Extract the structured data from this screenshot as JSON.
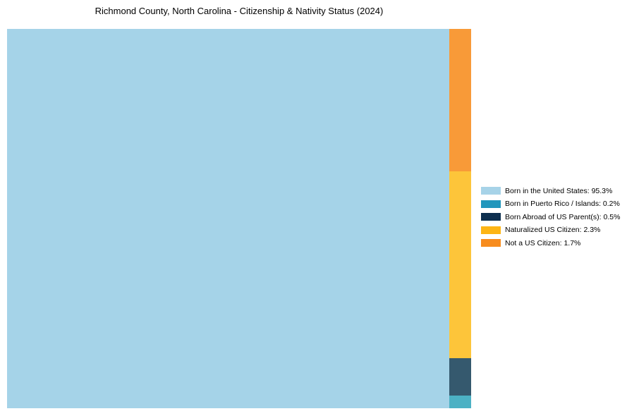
{
  "title": "Richmond County, North Carolina - Citizenship & Nativity Status (2024)",
  "colors": {
    "background": "#ffffff",
    "title_text": "#000000",
    "legend_text": "#000000"
  },
  "chart_data": {
    "type": "treemap",
    "title": "Richmond County, North Carolina - Citizenship & Nativity Status (2024)",
    "unit": "%",
    "total": 100,
    "legend_position": "right",
    "categories": [
      "Born in the United States",
      "Born in Puerto Rico / Islands",
      "Born Abroad of US Parent(s)",
      "Naturalized US Citizen",
      "Not a US Citizen"
    ],
    "values": [
      95.3,
      0.2,
      0.5,
      2.3,
      1.7
    ],
    "series": [
      {
        "label": "Born in the United States",
        "value": 95.3,
        "legend_label": "Born in the United States: 95.3%",
        "legend_color": "#a7d3e8",
        "tile_color": "#a5d3e8"
      },
      {
        "label": "Born in Puerto Rico / Islands",
        "value": 0.2,
        "legend_label": "Born in Puerto Rico / Islands: 0.2%",
        "legend_color": "#2196bc",
        "tile_color": "#4cb1c4"
      },
      {
        "label": "Born Abroad of US Parent(s)",
        "value": 0.5,
        "legend_label": "Born Abroad of US Parent(s): 0.5%",
        "legend_color": "#0d2f4f",
        "tile_color": "#35596e"
      },
      {
        "label": "Naturalized US Citizen",
        "value": 2.3,
        "legend_label": "Naturalized US Citizen: 2.3%",
        "legend_color": "#fdb515",
        "tile_color": "#fdc53a"
      },
      {
        "label": "Not a US Citizen",
        "value": 1.7,
        "legend_label": "Not a US Citizen: 1.7%",
        "legend_color": "#f78c1e",
        "tile_color": "#f89a38"
      }
    ]
  }
}
